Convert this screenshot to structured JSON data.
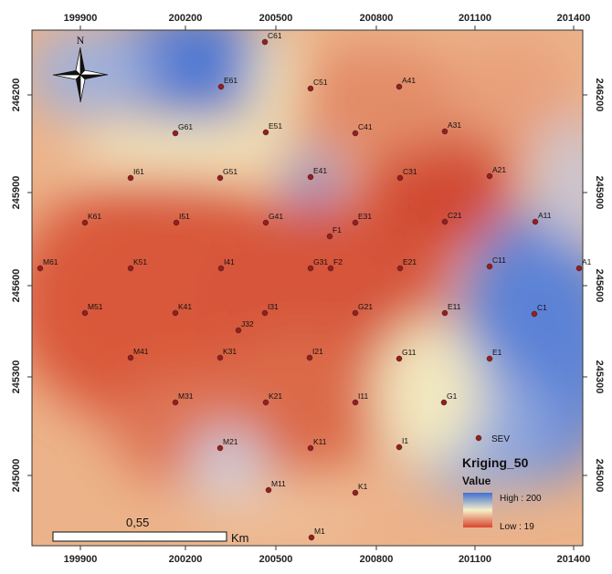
{
  "map": {
    "x_ticks": [
      "199900",
      "200200",
      "200500",
      "200800",
      "201100",
      "201400"
    ],
    "y_ticks": [
      "246200",
      "245900",
      "245600",
      "245300",
      "245000"
    ],
    "north_label": "N",
    "colors": {
      "high": "#3f6fd0",
      "mid": "#f5f0c8",
      "low": "#d8452c"
    }
  },
  "legend": {
    "title": "Kriging_50",
    "subtitle": "Value",
    "high_label": "High : 200",
    "low_label": "Low : 19",
    "sev_label": "SEV"
  },
  "scale_bar": {
    "value_label": "0,55",
    "unit_label": "Km"
  },
  "points": [
    {
      "label": "C61"
    },
    {
      "label": "E61"
    },
    {
      "label": "C51"
    },
    {
      "label": "A41"
    },
    {
      "label": "G61"
    },
    {
      "label": "E51"
    },
    {
      "label": "C41"
    },
    {
      "label": "A31"
    },
    {
      "label": "I61"
    },
    {
      "label": "G51"
    },
    {
      "label": "E41"
    },
    {
      "label": "C31"
    },
    {
      "label": "A21"
    },
    {
      "label": "K61"
    },
    {
      "label": "I51"
    },
    {
      "label": "G41"
    },
    {
      "label": "F1"
    },
    {
      "label": "E31"
    },
    {
      "label": "C21"
    },
    {
      "label": "A11"
    },
    {
      "label": "M61"
    },
    {
      "label": "K51"
    },
    {
      "label": "I41"
    },
    {
      "label": "G31"
    },
    {
      "label": "F2"
    },
    {
      "label": "E21"
    },
    {
      "label": "C11"
    },
    {
      "label": "A1"
    },
    {
      "label": "M51"
    },
    {
      "label": "K41"
    },
    {
      "label": "I31"
    },
    {
      "label": "J32"
    },
    {
      "label": "G21"
    },
    {
      "label": "E11"
    },
    {
      "label": "C1"
    },
    {
      "label": "M41"
    },
    {
      "label": "K31"
    },
    {
      "label": "I21"
    },
    {
      "label": "G11"
    },
    {
      "label": "E1"
    },
    {
      "label": "M31"
    },
    {
      "label": "K21"
    },
    {
      "label": "I11"
    },
    {
      "label": "G1"
    },
    {
      "label": "M21"
    },
    {
      "label": "K11"
    },
    {
      "label": "I1"
    },
    {
      "label": "M11"
    },
    {
      "label": "K1"
    },
    {
      "label": "M1"
    }
  ]
}
